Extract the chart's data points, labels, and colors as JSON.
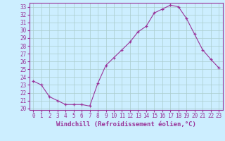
{
  "hours": [
    0,
    1,
    2,
    3,
    4,
    5,
    6,
    7,
    8,
    9,
    10,
    11,
    12,
    13,
    14,
    15,
    16,
    17,
    18,
    19,
    20,
    21,
    22,
    23
  ],
  "values": [
    23.5,
    23.0,
    21.5,
    21.0,
    20.5,
    20.5,
    20.5,
    20.3,
    23.2,
    25.5,
    26.5,
    27.5,
    28.5,
    29.8,
    30.5,
    32.2,
    32.7,
    33.2,
    33.0,
    31.5,
    29.5,
    27.5,
    26.3,
    25.2
  ],
  "line_color": "#993399",
  "marker": "+",
  "bg_color": "#cceeff",
  "grid_color": "#aacccc",
  "xlabel": "Windchill (Refroidissement éolien,°C)",
  "ylim": [
    19.8,
    33.5
  ],
  "xlim": [
    -0.5,
    23.5
  ],
  "yticks": [
    20,
    21,
    22,
    23,
    24,
    25,
    26,
    27,
    28,
    29,
    30,
    31,
    32,
    33
  ],
  "xtick_labels": [
    "0",
    "1",
    "2",
    "3",
    "4",
    "5",
    "6",
    "7",
    "8",
    "9",
    "10",
    "11",
    "12",
    "13",
    "14",
    "15",
    "16",
    "17",
    "18",
    "19",
    "20",
    "21",
    "22",
    "23"
  ],
  "tick_color": "#993399",
  "label_color": "#993399",
  "tick_fontsize": 5.5,
  "xlabel_fontsize": 6.5,
  "marker_size": 3.5,
  "line_width": 0.8
}
